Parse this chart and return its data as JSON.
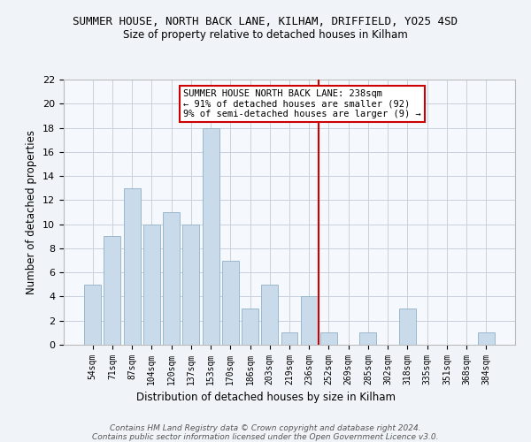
{
  "title": "SUMMER HOUSE, NORTH BACK LANE, KILHAM, DRIFFIELD, YO25 4SD",
  "subtitle": "Size of property relative to detached houses in Kilham",
  "xlabel": "Distribution of detached houses by size in Kilham",
  "ylabel": "Number of detached properties",
  "categories": [
    "54sqm",
    "71sqm",
    "87sqm",
    "104sqm",
    "120sqm",
    "137sqm",
    "153sqm",
    "170sqm",
    "186sqm",
    "203sqm",
    "219sqm",
    "236sqm",
    "252sqm",
    "269sqm",
    "285sqm",
    "302sqm",
    "318sqm",
    "335sqm",
    "351sqm",
    "368sqm",
    "384sqm"
  ],
  "values": [
    5,
    9,
    13,
    10,
    11,
    10,
    18,
    7,
    3,
    5,
    1,
    4,
    1,
    0,
    1,
    0,
    3,
    0,
    0,
    0,
    1
  ],
  "bar_color": "#c9daea",
  "bar_edge_color": "#9ab8cc",
  "vline_x": 11.5,
  "vline_color": "#cc0000",
  "annotation_text": "SUMMER HOUSE NORTH BACK LANE: 238sqm\n← 91% of detached houses are smaller (92)\n9% of semi-detached houses are larger (9) →",
  "annotation_box_color": "white",
  "annotation_box_edge": "#cc0000",
  "ylim": [
    0,
    22
  ],
  "yticks": [
    0,
    2,
    4,
    6,
    8,
    10,
    12,
    14,
    16,
    18,
    20,
    22
  ],
  "footer": "Contains HM Land Registry data © Crown copyright and database right 2024.\nContains public sector information licensed under the Open Government Licence v3.0.",
  "bg_color": "#f0f4f8",
  "plot_bg_color": "#f5f8fc",
  "grid_color": "#c8d0dc"
}
